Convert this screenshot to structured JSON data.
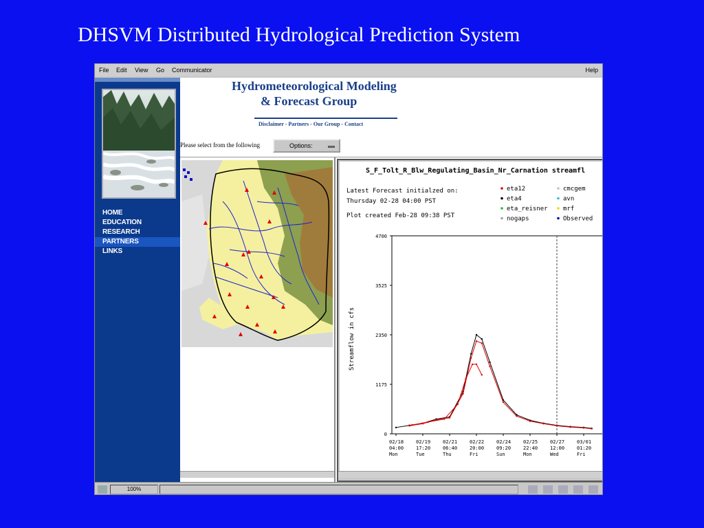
{
  "slide": {
    "title": "DHSVM Distributed Hydrological Prediction System"
  },
  "browser": {
    "menu": [
      "File",
      "Edit",
      "View",
      "Go",
      "Communicator"
    ],
    "help": "Help",
    "zoom": "100%"
  },
  "header": {
    "brand_line1": "Hydrometeorological Modeling",
    "brand_line2": "& Forecast Group",
    "links": "Disclaimer - Partners - Our Group - Contact",
    "prompt": "Please select from the following",
    "options_label": "Options:"
  },
  "nav": {
    "items": [
      "HOME",
      "EDUCATION",
      "RESEARCH",
      "PARTNERS",
      "LINKS"
    ],
    "active": "PARTNERS"
  },
  "plot": {
    "title": "S_F_Tolt_R_Blw_Regulating_Basin_Nr_Carnation streamfl",
    "forecast_label": "Latest Forecast initialzed on:",
    "forecast_time": "Thursday 02-28 04:00 PST",
    "created": "Plot created Feb-28 09:38 PST",
    "legend": [
      {
        "name": "eta12",
        "color": "#e00000"
      },
      {
        "name": "cmcgem",
        "color": "#c0c0c0"
      },
      {
        "name": "eta4",
        "color": "#000000"
      },
      {
        "name": "avn",
        "color": "#30c0e0"
      },
      {
        "name": "eta_reisner",
        "color": "#20c020"
      },
      {
        "name": "mrf",
        "color": "#e8e000"
      },
      {
        "name": "nogaps",
        "color": "#a0a0a0"
      },
      {
        "name": "Observed",
        "color": "#0000a0"
      }
    ]
  },
  "chart_data": {
    "type": "line",
    "title": "S_F_Tolt_R_Blw_Regulating_Basin_Nr_Carnation streamfl",
    "ylabel": "Streamflow in cfs",
    "xlabel": "",
    "ylim": [
      0,
      4700
    ],
    "yticks": [
      0,
      1175,
      2350,
      3525,
      4700
    ],
    "xticks": [
      {
        "date": "02/18",
        "time": "04:00",
        "day": "Mon"
      },
      {
        "date": "02/19",
        "time": "17:20",
        "day": "Tue"
      },
      {
        "date": "02/21",
        "time": "06:40",
        "day": "Thu"
      },
      {
        "date": "02/22",
        "time": "20:00",
        "day": "Fri"
      },
      {
        "date": "02/24",
        "time": "09:20",
        "day": "Sun"
      },
      {
        "date": "02/25",
        "time": "22:40",
        "day": "Mon"
      },
      {
        "date": "02/27",
        "time": "12:00",
        "day": "Wed"
      },
      {
        "date": "03/01",
        "time": "01:20",
        "day": "Fri"
      }
    ],
    "forecast_line_x": 6,
    "series": [
      {
        "color": "#000000",
        "x": [
          0,
          0.5,
          1,
          1.5,
          2,
          2.5,
          2.8,
          3.0,
          3.2,
          3.5,
          4,
          4.5,
          5,
          5.5,
          6,
          6.5,
          7.0,
          7.3
        ],
        "values": [
          150,
          200,
          250,
          350,
          400,
          1000,
          1900,
          2350,
          2250,
          1700,
          800,
          450,
          320,
          250,
          200,
          170,
          150,
          130
        ]
      },
      {
        "color": "#e00000",
        "x": [
          0.5,
          1,
          1.5,
          2,
          2.5,
          2.8,
          3.0,
          3.2,
          3.5,
          4,
          4.5,
          5,
          5.5,
          6,
          6.5,
          7.0,
          7.3
        ],
        "values": [
          190,
          240,
          330,
          380,
          950,
          1800,
          2200,
          2150,
          1600,
          750,
          420,
          300,
          240,
          190,
          160,
          140,
          120
        ]
      },
      {
        "color": "#e00000",
        "x": [
          0.6,
          1.2,
          1.8,
          2.3,
          2.6,
          2.85,
          3.0,
          3.2
        ],
        "values": [
          210,
          280,
          350,
          700,
          1300,
          1650,
          1650,
          1400
        ]
      }
    ]
  }
}
